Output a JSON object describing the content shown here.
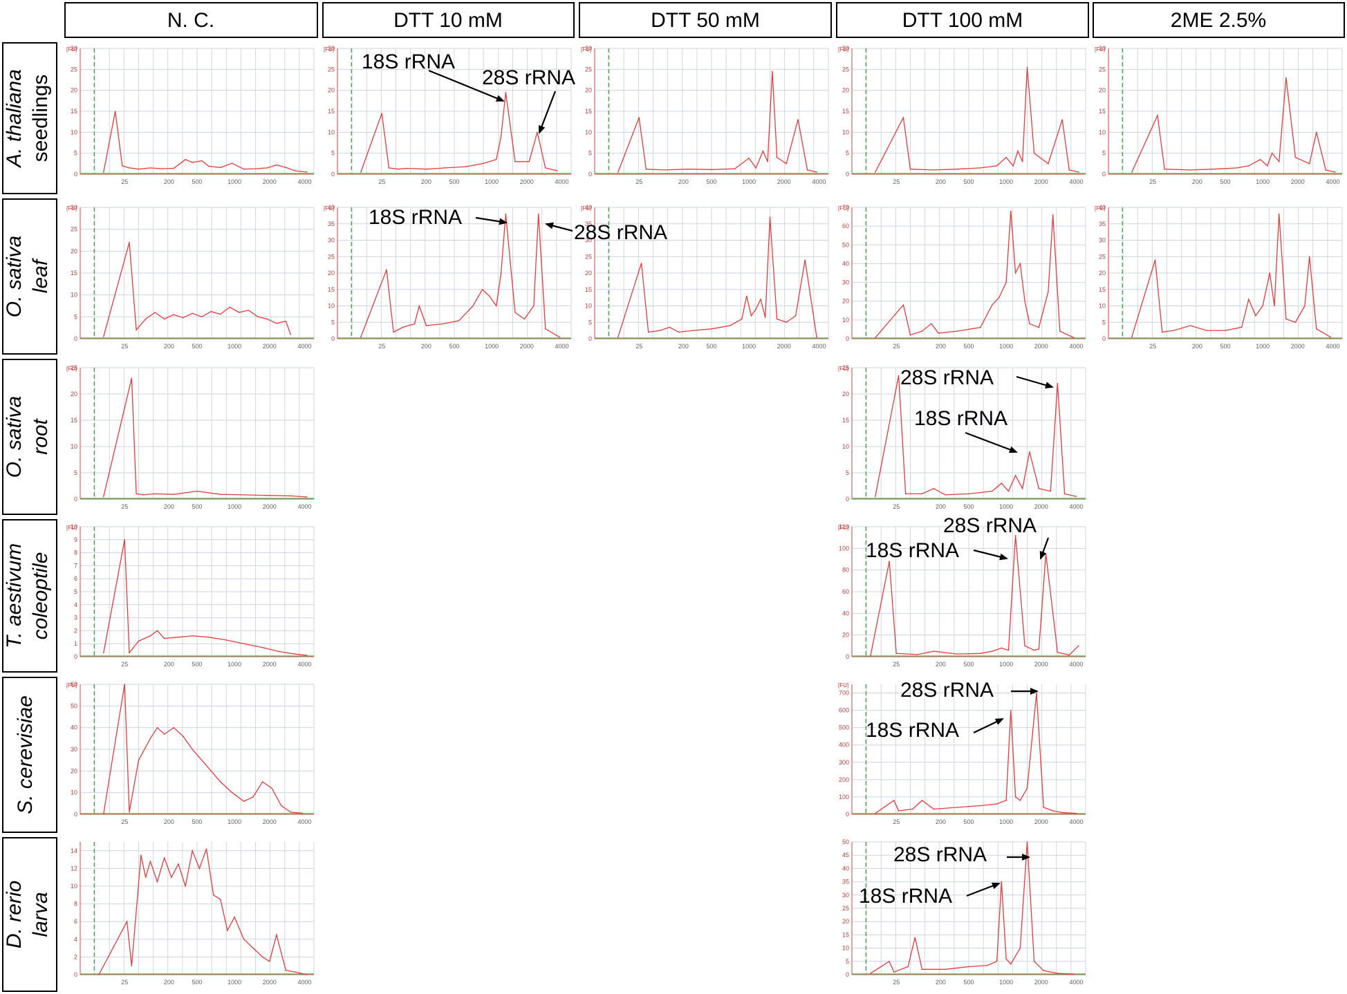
{
  "colors": {
    "trace": "#e23b3b",
    "baseline": "#48b048",
    "marker": "#4aa84a",
    "frame": "#000000"
  },
  "columns": [
    "N. C.",
    "DTT 10 mM",
    "DTT 50 mM",
    "DTT 100 mM",
    "2ME 2.5%"
  ],
  "rows": [
    {
      "italic": "A. thaliana",
      "plain": "seedlings"
    },
    {
      "italic": "O. sativa",
      "plain": "leaf"
    },
    {
      "italic": "O. sativa",
      "plain": "root"
    },
    {
      "italic": "T. aestivum",
      "plain": "coleoptile"
    },
    {
      "italic": "S. cerevisiae",
      "plain": ""
    },
    {
      "italic": "D. rerio",
      "plain": "larva"
    }
  ],
  "annotations": {
    "rrna18": "18S rRNA",
    "rrna28": "28S rRNA"
  },
  "ylabel_unit": "[FU]",
  "chart_data": [
    {
      "id": "r0c0",
      "type": "line",
      "xlabel": "",
      "ylabel": "[FU]",
      "ylim": [
        0,
        30
      ],
      "yticks": [
        0,
        5,
        10,
        15,
        20,
        25,
        30
      ],
      "xticks": [
        "25",
        "200",
        "500",
        "1000",
        "2000",
        "4000"
      ],
      "x": [
        0.1,
        0.15,
        0.18,
        0.21,
        0.25,
        0.3,
        0.35,
        0.4,
        0.45,
        0.48,
        0.52,
        0.55,
        0.6,
        0.65,
        0.7,
        0.75,
        0.8,
        0.84,
        0.88,
        0.92,
        0.97
      ],
      "y": [
        0.5,
        15.0,
        2.0,
        1.5,
        1.2,
        1.5,
        1.3,
        1.4,
        3.5,
        2.8,
        3.2,
        1.9,
        1.6,
        2.6,
        1.2,
        1.3,
        1.5,
        2.2,
        1.6,
        0.8,
        0.5
      ]
    },
    {
      "id": "r0c1",
      "type": "line",
      "xlabel": "",
      "ylabel": "[FU]",
      "ylim": [
        0,
        30
      ],
      "yticks": [
        0,
        5,
        10,
        15,
        20,
        25,
        30
      ],
      "xticks": [
        "25",
        "200",
        "500",
        "1000",
        "2000",
        "4000"
      ],
      "x": [
        0.1,
        0.19,
        0.22,
        0.26,
        0.3,
        0.38,
        0.46,
        0.55,
        0.62,
        0.68,
        0.7,
        0.72,
        0.76,
        0.82,
        0.855,
        0.89,
        0.94
      ],
      "y": [
        0.5,
        14.5,
        1.5,
        1.2,
        1.4,
        1.2,
        1.5,
        1.8,
        2.5,
        3.5,
        9.0,
        19.5,
        3.0,
        3.0,
        10.0,
        1.5,
        0.8
      ]
    },
    {
      "id": "r0c2",
      "type": "line",
      "xlabel": "",
      "ylabel": "[FU]",
      "ylim": [
        0,
        30
      ],
      "yticks": [
        0,
        5,
        10,
        15,
        20,
        25,
        30
      ],
      "xticks": [
        "25",
        "200",
        "500",
        "1000",
        "2000",
        "4000"
      ],
      "x": [
        0.1,
        0.19,
        0.22,
        0.3,
        0.4,
        0.5,
        0.6,
        0.66,
        0.69,
        0.72,
        0.74,
        0.76,
        0.78,
        0.82,
        0.87,
        0.91,
        0.95
      ],
      "y": [
        0.5,
        13.5,
        1.2,
        1.0,
        1.2,
        1.1,
        1.3,
        3.8,
        1.5,
        5.5,
        3.0,
        24.5,
        4.0,
        2.5,
        13.0,
        1.0,
        0.5
      ]
    },
    {
      "id": "r0c3",
      "type": "line",
      "xlabel": "",
      "ylabel": "[FU]",
      "ylim": [
        0,
        30
      ],
      "yticks": [
        0,
        5,
        10,
        15,
        20,
        25,
        30
      ],
      "xticks": [
        "25",
        "200",
        "500",
        "1000",
        "2000",
        "4000"
      ],
      "x": [
        0.1,
        0.22,
        0.25,
        0.35,
        0.45,
        0.55,
        0.62,
        0.66,
        0.69,
        0.71,
        0.73,
        0.75,
        0.78,
        0.84,
        0.9,
        0.93,
        0.97
      ],
      "y": [
        0.5,
        13.5,
        1.2,
        1.0,
        1.2,
        1.5,
        2.0,
        4.0,
        2.0,
        5.5,
        3.0,
        25.5,
        5.0,
        2.5,
        13.0,
        1.0,
        0.5
      ]
    },
    {
      "id": "r0c4",
      "type": "line",
      "xlabel": "",
      "ylabel": "[FU]",
      "ylim": [
        0,
        30
      ],
      "yticks": [
        0,
        5,
        10,
        15,
        20,
        25,
        30
      ],
      "xticks": [
        "25",
        "200",
        "500",
        "1000",
        "2000",
        "4000"
      ],
      "x": [
        0.1,
        0.21,
        0.24,
        0.35,
        0.45,
        0.55,
        0.6,
        0.65,
        0.68,
        0.7,
        0.73,
        0.76,
        0.8,
        0.86,
        0.89,
        0.93,
        0.97
      ],
      "y": [
        0.5,
        14.0,
        1.2,
        1.0,
        1.2,
        1.5,
        2.0,
        3.5,
        2.0,
        5.0,
        3.0,
        23.0,
        4.0,
        2.5,
        10.0,
        1.0,
        0.5
      ]
    },
    {
      "id": "r1c0",
      "type": "line",
      "xlabel": "",
      "ylabel": "[FU]",
      "ylim": [
        0,
        30
      ],
      "yticks": [
        0,
        5,
        10,
        15,
        20,
        25,
        30
      ],
      "xticks": [
        "25",
        "200",
        "500",
        "1000",
        "2000",
        "4000"
      ],
      "x": [
        0.1,
        0.21,
        0.24,
        0.28,
        0.32,
        0.36,
        0.4,
        0.44,
        0.48,
        0.52,
        0.56,
        0.6,
        0.64,
        0.68,
        0.72,
        0.76,
        0.8,
        0.84,
        0.88,
        0.9
      ],
      "y": [
        0.5,
        22.0,
        2.0,
        4.5,
        6.0,
        4.5,
        5.5,
        4.8,
        5.8,
        5.0,
        6.2,
        5.6,
        7.2,
        6.0,
        6.5,
        5.0,
        4.5,
        3.5,
        4.0,
        1.0
      ]
    },
    {
      "id": "r1c1",
      "type": "line",
      "xlabel": "",
      "ylabel": "[FU]",
      "ylim": [
        0,
        40
      ],
      "yticks": [
        0,
        5,
        10,
        15,
        20,
        25,
        30,
        35,
        40
      ],
      "xticks": [
        "25",
        "200",
        "500",
        "1000",
        "2000",
        "4000"
      ],
      "x": [
        0.1,
        0.21,
        0.24,
        0.28,
        0.33,
        0.35,
        0.38,
        0.45,
        0.52,
        0.58,
        0.62,
        0.65,
        0.68,
        0.7,
        0.72,
        0.74,
        0.76,
        0.8,
        0.84,
        0.86,
        0.89,
        0.95
      ],
      "y": [
        0.5,
        21.0,
        2.0,
        3.5,
        4.5,
        10.0,
        4.0,
        4.5,
        5.5,
        10.0,
        15.0,
        13.0,
        10.0,
        20.0,
        38.0,
        23.0,
        8.0,
        6.0,
        10.0,
        38.0,
        3.0,
        0.5
      ]
    },
    {
      "id": "r1c2",
      "type": "line",
      "xlabel": "",
      "ylabel": "[FU]",
      "ylim": [
        0,
        40
      ],
      "yticks": [
        0,
        5,
        10,
        15,
        20,
        25,
        30,
        35,
        40
      ],
      "xticks": [
        "25",
        "200",
        "500",
        "1000",
        "2000",
        "4000"
      ],
      "x": [
        0.1,
        0.2,
        0.23,
        0.28,
        0.32,
        0.36,
        0.42,
        0.5,
        0.58,
        0.63,
        0.65,
        0.67,
        0.69,
        0.71,
        0.73,
        0.75,
        0.78,
        0.82,
        0.86,
        0.9,
        0.95
      ],
      "y": [
        0.5,
        23.0,
        2.0,
        2.5,
        3.5,
        2.0,
        2.5,
        3.0,
        4.0,
        6.0,
        13.0,
        7.0,
        9.0,
        12.0,
        6.5,
        37.0,
        6.0,
        5.0,
        7.0,
        24.0,
        0.5
      ]
    },
    {
      "id": "r1c3",
      "type": "line",
      "xlabel": "",
      "ylabel": "[FU]",
      "ylim": [
        0,
        70
      ],
      "yticks": [
        0,
        10,
        20,
        30,
        40,
        50,
        60,
        70
      ],
      "xticks": [
        "25",
        "200",
        "500",
        "1000",
        "2000",
        "4000"
      ],
      "x": [
        0.1,
        0.22,
        0.25,
        0.3,
        0.34,
        0.37,
        0.45,
        0.55,
        0.6,
        0.63,
        0.66,
        0.68,
        0.7,
        0.72,
        0.74,
        0.76,
        0.8,
        0.84,
        0.86,
        0.89,
        0.95
      ],
      "y": [
        0.5,
        18.0,
        2.0,
        4.0,
        8.0,
        3.0,
        4.0,
        6.0,
        18.0,
        22.0,
        30.0,
        68.0,
        35.0,
        40.0,
        20.0,
        8.0,
        6.0,
        25.0,
        66.0,
        4.0,
        0.5
      ]
    },
    {
      "id": "r1c4",
      "type": "line",
      "xlabel": "",
      "ylabel": "[FU]",
      "ylim": [
        0,
        40
      ],
      "yticks": [
        0,
        5,
        10,
        15,
        20,
        25,
        30,
        35,
        40
      ],
      "xticks": [
        "25",
        "200",
        "500",
        "1000",
        "2000",
        "4000"
      ],
      "x": [
        0.1,
        0.2,
        0.23,
        0.28,
        0.35,
        0.42,
        0.5,
        0.57,
        0.6,
        0.63,
        0.66,
        0.69,
        0.71,
        0.73,
        0.76,
        0.8,
        0.84,
        0.86,
        0.89,
        0.95
      ],
      "y": [
        0.5,
        24.0,
        2.0,
        2.5,
        4.0,
        2.5,
        2.5,
        3.5,
        12.0,
        7.0,
        10.0,
        20.0,
        10.0,
        38.0,
        6.0,
        5.0,
        10.0,
        25.0,
        3.0,
        0.5
      ]
    },
    {
      "id": "r2c0",
      "type": "line",
      "xlabel": "",
      "ylabel": "[FU]",
      "ylim": [
        0,
        25
      ],
      "yticks": [
        0,
        5,
        10,
        15,
        20,
        25
      ],
      "xticks": [
        "25",
        "200",
        "500",
        "1000",
        "2000",
        "4000"
      ],
      "x": [
        0.1,
        0.22,
        0.24,
        0.27,
        0.32,
        0.4,
        0.45,
        0.5,
        0.6,
        0.7,
        0.8,
        0.9,
        0.97
      ],
      "y": [
        0.5,
        23.0,
        1.0,
        0.8,
        1.0,
        0.9,
        1.2,
        1.5,
        0.9,
        0.8,
        0.7,
        0.6,
        0.4
      ]
    },
    {
      "id": "r2c3",
      "type": "line",
      "xlabel": "",
      "ylabel": "[FU]",
      "ylim": [
        0,
        25
      ],
      "yticks": [
        0,
        5,
        10,
        15,
        20,
        25
      ],
      "xticks": [
        "25",
        "200",
        "500",
        "1000",
        "2000",
        "4000"
      ],
      "x": [
        0.1,
        0.2,
        0.23,
        0.3,
        0.35,
        0.4,
        0.5,
        0.6,
        0.64,
        0.67,
        0.7,
        0.73,
        0.76,
        0.8,
        0.85,
        0.88,
        0.91,
        0.96
      ],
      "y": [
        0.5,
        23.5,
        1.0,
        1.0,
        2.0,
        0.8,
        1.0,
        1.5,
        3.0,
        1.5,
        4.5,
        2.0,
        9.0,
        2.0,
        1.5,
        22.0,
        1.0,
        0.5
      ]
    },
    {
      "id": "r3c0",
      "type": "line",
      "xlabel": "",
      "ylabel": "[FU]",
      "ylim": [
        0,
        10
      ],
      "yticks": [
        0,
        1,
        2,
        3,
        4,
        5,
        6,
        7,
        8,
        9,
        10
      ],
      "xticks": [
        "25",
        "200",
        "500",
        "1000",
        "2000",
        "4000"
      ],
      "x": [
        0.1,
        0.19,
        0.21,
        0.25,
        0.3,
        0.33,
        0.36,
        0.42,
        0.48,
        0.55,
        0.62,
        0.7,
        0.78,
        0.85,
        0.92,
        0.97
      ],
      "y": [
        0.3,
        9.0,
        0.3,
        1.2,
        1.6,
        2.0,
        1.4,
        1.5,
        1.6,
        1.5,
        1.3,
        1.0,
        0.7,
        0.4,
        0.2,
        0.1
      ]
    },
    {
      "id": "r3c3",
      "type": "line",
      "xlabel": "",
      "ylabel": "[FU]",
      "ylim": [
        0,
        120
      ],
      "yticks": [
        0,
        20,
        40,
        60,
        80,
        100,
        120
      ],
      "xticks": [
        "25",
        "200",
        "500",
        "1000",
        "2000",
        "4000"
      ],
      "x": [
        0.08,
        0.16,
        0.19,
        0.28,
        0.35,
        0.45,
        0.55,
        0.6,
        0.64,
        0.67,
        0.7,
        0.74,
        0.78,
        0.8,
        0.83,
        0.88,
        0.93,
        0.97
      ],
      "y": [
        1.0,
        88.0,
        3.0,
        2.0,
        5.0,
        2.5,
        3.0,
        5.0,
        8.0,
        6.0,
        112.0,
        10.0,
        6.0,
        7.0,
        95.0,
        4.0,
        1.5,
        10.0
      ]
    },
    {
      "id": "r4c0",
      "type": "line",
      "xlabel": "",
      "ylabel": "[FU]",
      "ylim": [
        0,
        60
      ],
      "yticks": [
        0,
        10,
        20,
        30,
        40,
        50,
        60
      ],
      "xticks": [
        "25",
        "200",
        "500",
        "1000",
        "2000",
        "4000"
      ],
      "x": [
        0.1,
        0.19,
        0.21,
        0.25,
        0.3,
        0.33,
        0.36,
        0.4,
        0.44,
        0.48,
        0.52,
        0.56,
        0.6,
        0.65,
        0.7,
        0.74,
        0.78,
        0.82,
        0.86,
        0.9,
        0.95
      ],
      "y": [
        0.3,
        60.0,
        1.0,
        25.0,
        35.0,
        40.0,
        37.0,
        40.0,
        36.0,
        30.0,
        25.0,
        20.0,
        15.0,
        10.0,
        6.0,
        8.0,
        15.0,
        12.0,
        4.0,
        1.0,
        0.5
      ]
    },
    {
      "id": "r4c3",
      "type": "line",
      "xlabel": "",
      "ylabel": "[FU]",
      "ylim": [
        0,
        750
      ],
      "yticks": [
        0,
        100,
        200,
        300,
        400,
        500,
        600,
        700
      ],
      "xticks": [
        "25",
        "200",
        "500",
        "1000",
        "2000",
        "4000"
      ],
      "x": [
        0.1,
        0.18,
        0.2,
        0.26,
        0.3,
        0.35,
        0.45,
        0.55,
        0.62,
        0.66,
        0.68,
        0.7,
        0.72,
        0.75,
        0.79,
        0.82,
        0.86,
        0.9,
        0.96
      ],
      "y": [
        5.0,
        80.0,
        20.0,
        30.0,
        80.0,
        30.0,
        40.0,
        50.0,
        60.0,
        80.0,
        600.0,
        100.0,
        80.0,
        150.0,
        700.0,
        40.0,
        20.0,
        10.0,
        5.0
      ]
    },
    {
      "id": "r5c0",
      "type": "line",
      "xlabel": "",
      "ylabel": "",
      "ylim": [
        0,
        15
      ],
      "yticks": [
        0,
        2,
        4,
        6,
        8,
        10,
        12,
        14
      ],
      "xticks": [
        "25",
        "200",
        "500",
        "1000",
        "2000",
        "4000"
      ],
      "x": [
        0.08,
        0.2,
        0.22,
        0.26,
        0.28,
        0.3,
        0.33,
        0.36,
        0.39,
        0.42,
        0.45,
        0.48,
        0.51,
        0.54,
        0.57,
        0.6,
        0.63,
        0.66,
        0.7,
        0.74,
        0.78,
        0.81,
        0.84,
        0.88,
        0.92,
        0.97
      ],
      "y": [
        0.0,
        6.0,
        1.0,
        13.5,
        11.0,
        12.8,
        10.5,
        13.2,
        11.0,
        12.5,
        10.0,
        14.0,
        12.0,
        14.2,
        9.0,
        8.5,
        5.0,
        6.5,
        4.0,
        3.0,
        2.0,
        1.5,
        4.5,
        0.5,
        0.3,
        0.0
      ]
    },
    {
      "id": "r5c3",
      "type": "line",
      "xlabel": "",
      "ylabel": "",
      "ylim": [
        0,
        50
      ],
      "yticks": [
        0,
        5,
        10,
        15,
        20,
        25,
        30,
        35,
        40,
        45,
        50
      ],
      "xticks": [
        "25",
        "200",
        "500",
        "1000",
        "2000",
        "4000"
      ],
      "x": [
        0.08,
        0.16,
        0.18,
        0.24,
        0.27,
        0.3,
        0.4,
        0.5,
        0.58,
        0.62,
        0.64,
        0.66,
        0.68,
        0.72,
        0.75,
        0.78,
        0.82,
        0.88,
        0.95
      ],
      "y": [
        0.5,
        5.0,
        1.0,
        3.0,
        14.0,
        2.0,
        2.0,
        3.0,
        3.5,
        5.0,
        35.0,
        6.0,
        4.0,
        10.0,
        50.0,
        5.0,
        1.5,
        0.5,
        0.2
      ]
    }
  ]
}
